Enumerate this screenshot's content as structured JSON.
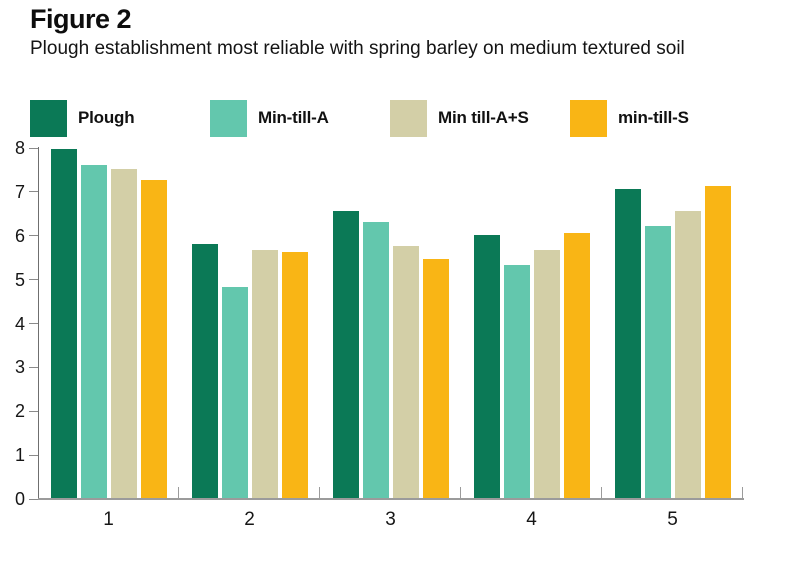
{
  "figure": {
    "label": "Figure 2",
    "subtitle": "Plough establishment most reliable with spring barley on medium textured soil"
  },
  "chart_data": {
    "type": "bar",
    "title": "Plough establishment most reliable with spring barley on medium textured soil",
    "categories": [
      "1",
      "2",
      "3",
      "4",
      "5"
    ],
    "series": [
      {
        "name": "Plough",
        "color": "#0B7956",
        "values": [
          7.95,
          5.8,
          6.55,
          6.0,
          7.05
        ]
      },
      {
        "name": "Min-till-A",
        "color": "#63C7AD",
        "values": [
          7.6,
          4.8,
          6.3,
          5.3,
          6.2
        ]
      },
      {
        "name": "Min till-A+S",
        "color": "#D3CFA7",
        "values": [
          7.5,
          5.65,
          5.75,
          5.65,
          6.55
        ]
      },
      {
        "name": "min-till-S",
        "color": "#F9B515",
        "values": [
          7.25,
          5.6,
          5.45,
          6.05,
          7.1
        ]
      }
    ],
    "xlabel": "",
    "ylabel": "",
    "ylim": [
      0,
      8
    ],
    "yticks": [
      0,
      1,
      2,
      3,
      4,
      5,
      6,
      7,
      8
    ],
    "grid": false,
    "legend_position": "top",
    "axis_color": "#9b9b9b"
  }
}
